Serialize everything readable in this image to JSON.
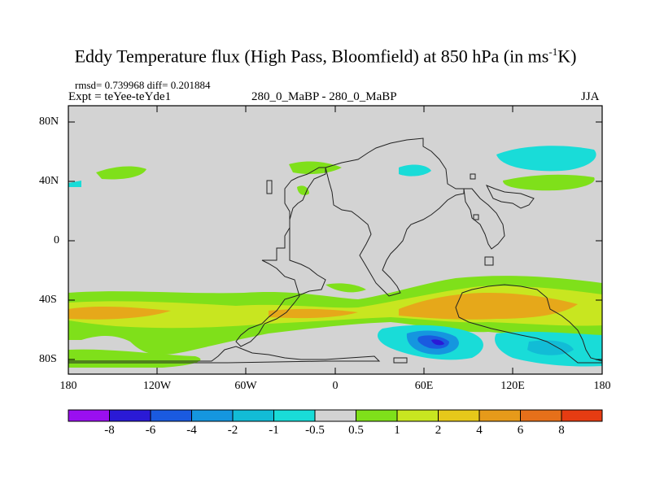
{
  "title": {
    "main": "Eddy Temperature flux (High Pass, Bloomfield) at 850 hPa (in ms",
    "unit_sup": "-1",
    "unit_end": "K)"
  },
  "subtitle": {
    "stats": "rmsd= 0.739968 diff= 0.201884",
    "expt": "Expt = teYee-teYde1",
    "cases": "280_0_MaBP - 280_0_MaBP",
    "season": "JJA"
  },
  "map": {
    "background_color": "#d3d3d3",
    "y_ticks": [
      "80N",
      "40N",
      "0",
      "40S",
      "80S"
    ],
    "x_ticks": [
      "180",
      "120W",
      "60W",
      "0",
      "60E",
      "120E",
      "180"
    ]
  },
  "colorbar": {
    "colors": [
      "#9a0ff0",
      "#2a1ad6",
      "#1a5ae0",
      "#1596df",
      "#12bcd6",
      "#19dcd8",
      "#d3d3d3",
      "#7fe01a",
      "#c8e620",
      "#e6c81a",
      "#e69a1a",
      "#e6701a",
      "#e63c12"
    ],
    "labels": [
      "-8",
      "-6",
      "-4",
      "-2",
      "-1",
      "-0.5",
      "0.5",
      "1",
      "2",
      "4",
      "6",
      "8"
    ]
  }
}
